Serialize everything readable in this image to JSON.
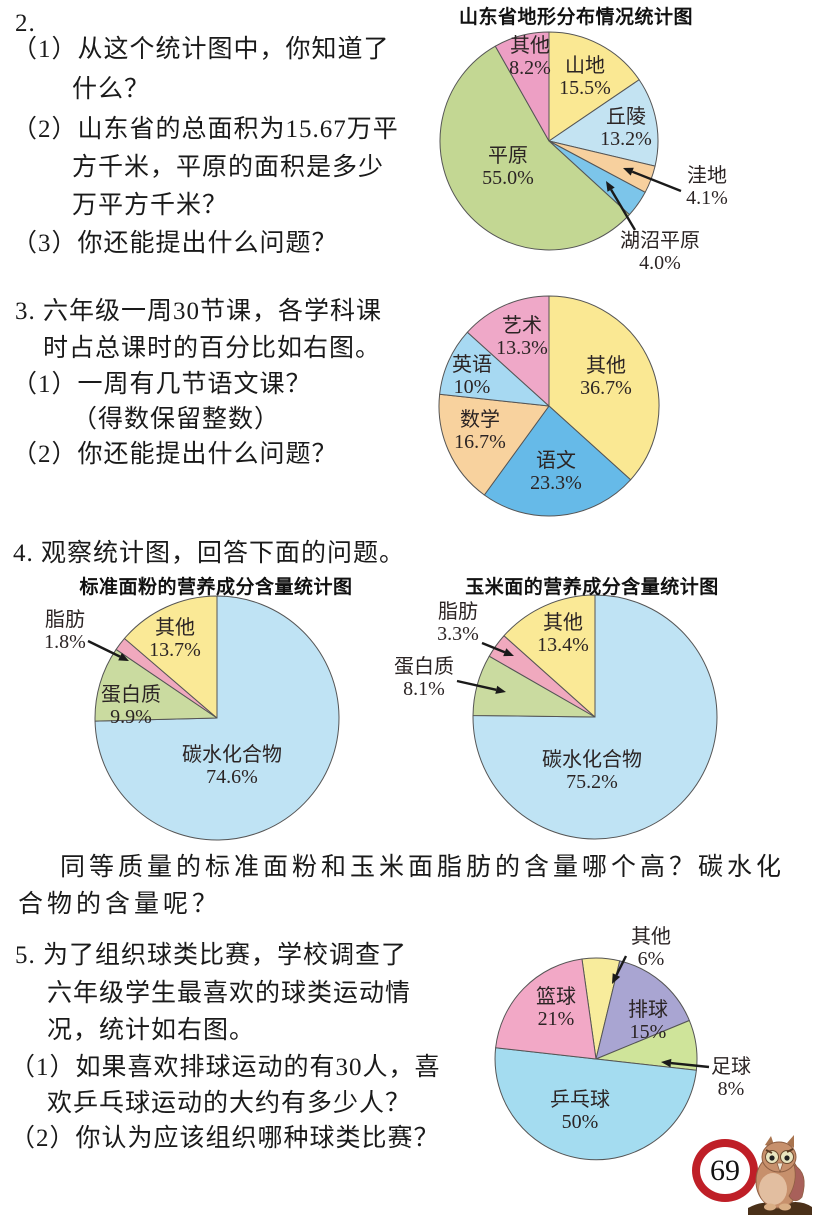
{
  "page": {
    "number": "69"
  },
  "q2": {
    "label": "2.",
    "item1_l1": "（1）从这个统计图中，你知道了",
    "item1_l2": "什么？",
    "item2_l1": "（2）山东省的总面积为15.67万平",
    "item2_l2": "方千米，平原的面积是多少",
    "item2_l3": "万平方千米？",
    "item3": "（3）你还能提出什么问题？"
  },
  "q3": {
    "l1": "3. 六年级一周30节课，各学科课",
    "l2": "时占总课时的百分比如右图。",
    "item1": "（1）一周有几节语文课？",
    "item1_note": "（得数保留整数）",
    "item2": "（2）你还能提出什么问题？"
  },
  "q4": {
    "heading": "4. 观察统计图，回答下面的问题。",
    "followup_l1": "同等质量的标准面粉和玉米面脂肪的含量哪个高？碳水化",
    "followup_l2": "合物的含量呢？"
  },
  "q5": {
    "l1": "5. 为了组织球类比赛，学校调查了",
    "l2": "六年级学生最喜欢的球类运动情",
    "l3": "况，统计如右图。",
    "item1_l1": "（1）如果喜欢排球运动的有30人，喜",
    "item1_l2": "欢乒乓球运动的大约有多少人？",
    "item2": "（2）你认为应该组织哪种球类比赛？"
  },
  "chart_data": [
    {
      "type": "pie",
      "title": "山东省地形分布情况统计图",
      "slices": [
        {
          "label": "山地",
          "value": 15.5,
          "percent_text": "15.5%",
          "color": "#FAE893"
        },
        {
          "label": "丘陵",
          "value": 13.2,
          "percent_text": "13.2%",
          "color": "#C3E3F2"
        },
        {
          "label": "洼地",
          "value": 4.1,
          "percent_text": "4.1%",
          "color": "#F7D09E"
        },
        {
          "label": "湖沼平原",
          "value": 4.0,
          "percent_text": "4.0%",
          "color": "#7CC5EA"
        },
        {
          "label": "平原",
          "value": 55.0,
          "percent_text": "55.0%",
          "color": "#C3D793"
        },
        {
          "label": "其他",
          "value": 8.2,
          "percent_text": "8.2%",
          "color": "#ED9FC4"
        }
      ]
    },
    {
      "type": "pie",
      "title": "",
      "slices": [
        {
          "label": "其他",
          "value": 36.7,
          "percent_text": "36.7%",
          "color": "#FAE893"
        },
        {
          "label": "语文",
          "value": 23.3,
          "percent_text": "23.3%",
          "color": "#66BAE8"
        },
        {
          "label": "数学",
          "value": 16.7,
          "percent_text": "16.7%",
          "color": "#F8D29E"
        },
        {
          "label": "英语",
          "value": 10,
          "percent_text": "10%",
          "color": "#A7D9F2"
        },
        {
          "label": "艺术",
          "value": 13.3,
          "percent_text": "13.3%",
          "color": "#EFA8C8"
        }
      ]
    },
    {
      "type": "pie",
      "title": "标准面粉的营养成分含量统计图",
      "slices": [
        {
          "label": "碳水化合物",
          "value": 74.6,
          "percent_text": "74.6%",
          "color": "#BFE3F4"
        },
        {
          "label": "蛋白质",
          "value": 9.9,
          "percent_text": "9.9%",
          "color": "#CADBA0"
        },
        {
          "label": "脂肪",
          "value": 1.8,
          "percent_text": "1.8%",
          "color": "#F0A9BE"
        },
        {
          "label": "其他",
          "value": 13.7,
          "percent_text": "13.7%",
          "color": "#FAE996"
        }
      ]
    },
    {
      "type": "pie",
      "title": "玉米面的营养成分含量统计图",
      "slices": [
        {
          "label": "碳水化合物",
          "value": 75.2,
          "percent_text": "75.2%",
          "color": "#BFE3F4"
        },
        {
          "label": "蛋白质",
          "value": 8.1,
          "percent_text": "8.1%",
          "color": "#CADBA0"
        },
        {
          "label": "脂肪",
          "value": 3.3,
          "percent_text": "3.3%",
          "color": "#F0A9BE"
        },
        {
          "label": "其他",
          "value": 13.4,
          "percent_text": "13.4%",
          "color": "#FAE996"
        }
      ]
    },
    {
      "type": "pie",
      "title": "",
      "slices": [
        {
          "label": "其他",
          "value": 6,
          "percent_text": "6%",
          "color": "#F8EC9C"
        },
        {
          "label": "排球",
          "value": 15,
          "percent_text": "15%",
          "color": "#A9A5D2"
        },
        {
          "label": "足球",
          "value": 8,
          "percent_text": "8%",
          "color": "#CFE49A"
        },
        {
          "label": "乒乓球",
          "value": 50,
          "percent_text": "50%",
          "color": "#A4DCF0"
        },
        {
          "label": "篮球",
          "value": 21,
          "percent_text": "21%",
          "color": "#F2A8C6"
        }
      ]
    }
  ]
}
